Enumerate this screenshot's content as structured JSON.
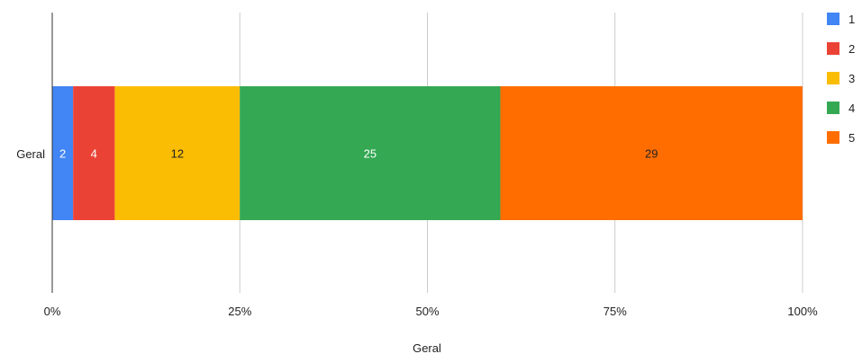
{
  "chart_data": {
    "type": "bar",
    "orientation": "horizontal",
    "stacked": "percent",
    "categories": [
      "Geral"
    ],
    "series": [
      {
        "name": "1",
        "values": [
          2
        ],
        "color": "#4285f4",
        "label_color": "#ffffff"
      },
      {
        "name": "2",
        "values": [
          4
        ],
        "color": "#ea4335",
        "label_color": "#ffffff"
      },
      {
        "name": "3",
        "values": [
          12
        ],
        "color": "#fbbc04",
        "label_color": "#222222"
      },
      {
        "name": "4",
        "values": [
          25
        ],
        "color": "#34a853",
        "label_color": "#ffffff"
      },
      {
        "name": "5",
        "values": [
          29
        ],
        "color": "#ff6d01",
        "label_color": "#222222"
      }
    ],
    "x_ticks": [
      "0%",
      "25%",
      "50%",
      "75%",
      "100%"
    ],
    "xlim": [
      0,
      100
    ],
    "xlabel": "Geral",
    "ylabel": "",
    "title": "",
    "grid": true,
    "legend": "right"
  }
}
